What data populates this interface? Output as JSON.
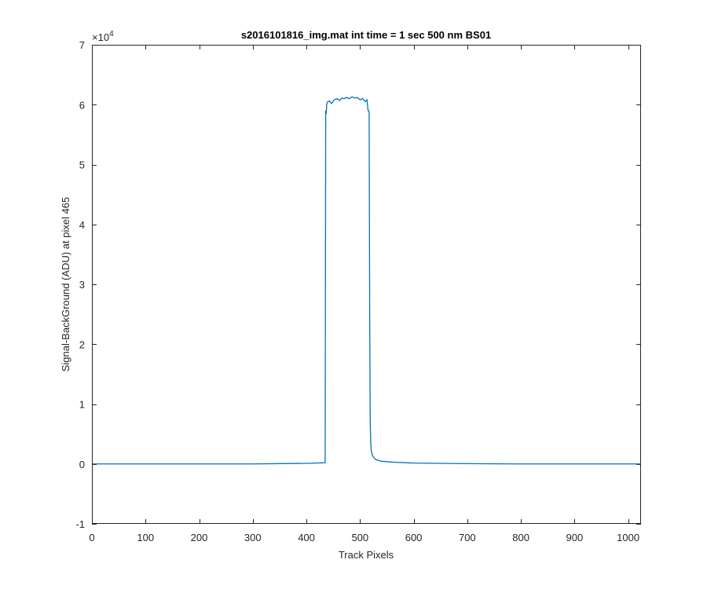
{
  "chart_data": {
    "type": "line",
    "title": "s2016101816_img.mat int time = 1 sec  500 nm BS01",
    "xlabel": "Track Pixels",
    "ylabel": "Signal-BackGround (ADU) at pixel 465",
    "y_exponent_label": "×10",
    "y_exponent_power": "4",
    "xlim": [
      0,
      1024
    ],
    "ylim": [
      -10000,
      70000
    ],
    "xticks": [
      0,
      100,
      200,
      300,
      400,
      500,
      600,
      700,
      800,
      900,
      1000
    ],
    "xtick_labels": [
      "0",
      "100",
      "200",
      "300",
      "400",
      "500",
      "600",
      "700",
      "800",
      "900",
      "1000"
    ],
    "yticks": [
      -10000,
      0,
      10000,
      20000,
      30000,
      40000,
      50000,
      60000,
      70000
    ],
    "ytick_labels": [
      "-1",
      "0",
      "1",
      "2",
      "3",
      "4",
      "5",
      "6",
      "7"
    ],
    "grid": false,
    "line_color": "#0072BD",
    "series": [
      {
        "x": [
          0,
          100,
          200,
          300,
          400,
          435,
          436,
          437,
          438,
          440,
          443,
          447,
          452,
          457,
          462,
          466,
          470,
          475,
          480,
          485,
          490,
          495,
          500,
          505,
          510,
          513,
          515,
          516,
          517,
          518,
          519,
          520,
          521,
          523,
          526,
          530,
          540,
          560,
          600,
          700,
          800,
          900,
          1024
        ],
        "y": [
          0,
          0,
          0,
          0,
          100,
          200,
          59000,
          58500,
          60200,
          60500,
          60600,
          60200,
          60800,
          61000,
          60700,
          61100,
          61000,
          61200,
          61000,
          61300,
          61100,
          61200,
          60800,
          61000,
          60500,
          60800,
          59000,
          59000,
          58800,
          25000,
          7000,
          3500,
          2200,
          1500,
          1000,
          700,
          450,
          300,
          150,
          50,
          0,
          0,
          0
        ]
      }
    ]
  }
}
